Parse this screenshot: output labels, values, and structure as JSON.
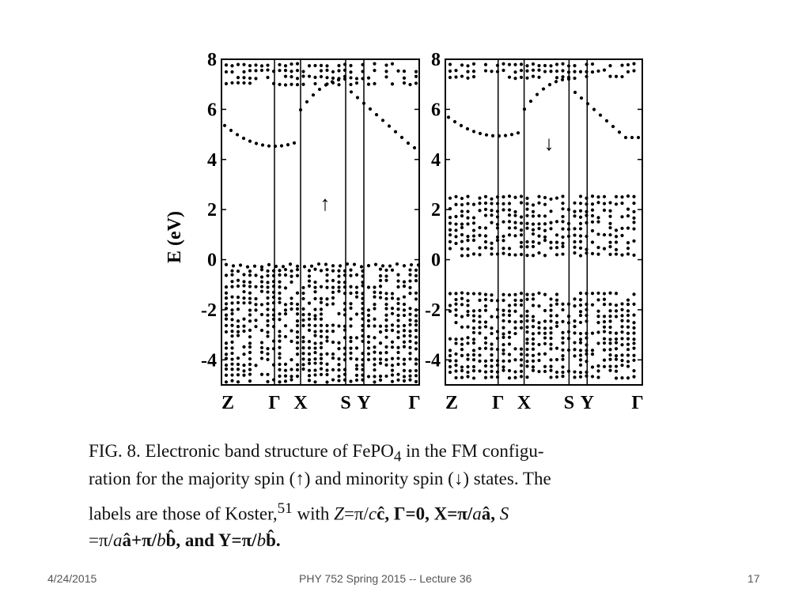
{
  "figure": {
    "y_axis_label": "E (eV)",
    "ylim": [
      -5,
      8
    ],
    "panels": [
      {
        "spin_label": "↑",
        "yticks": [
          8,
          6,
          4,
          2,
          0,
          -2,
          -4
        ],
        "kpoints": [
          "Z",
          "Γ",
          "X",
          "S",
          "Y",
          "Γ"
        ]
      },
      {
        "spin_label": "↓",
        "yticks": [
          8,
          6,
          4,
          2,
          0,
          -2,
          -4
        ],
        "kpoints": [
          "Z",
          "Γ",
          "X",
          "S",
          "Y",
          "Γ"
        ]
      }
    ]
  },
  "caption": {
    "lines": [
      [
        "FIG. 8. Electronic band structure of FePO",
        "4",
        " in the FM configu-"
      ],
      [
        "ration for the majority spin (↑) and minority spin (↓) states. The"
      ],
      [
        "labels are those of Koster,",
        "51",
        " with ",
        "Z",
        "=π/",
        "c",
        "ĉ, Γ=0, X=π/",
        "a",
        "â, ",
        "S"
      ],
      [
        "=π/",
        "a",
        "â+π/",
        "b",
        "b̂, and Y=π/",
        "b",
        "b̂."
      ]
    ]
  },
  "footer": {
    "date": "4/24/2015",
    "title": "PHY 752  Spring 2015 -- Lecture 36",
    "page": "17"
  }
}
